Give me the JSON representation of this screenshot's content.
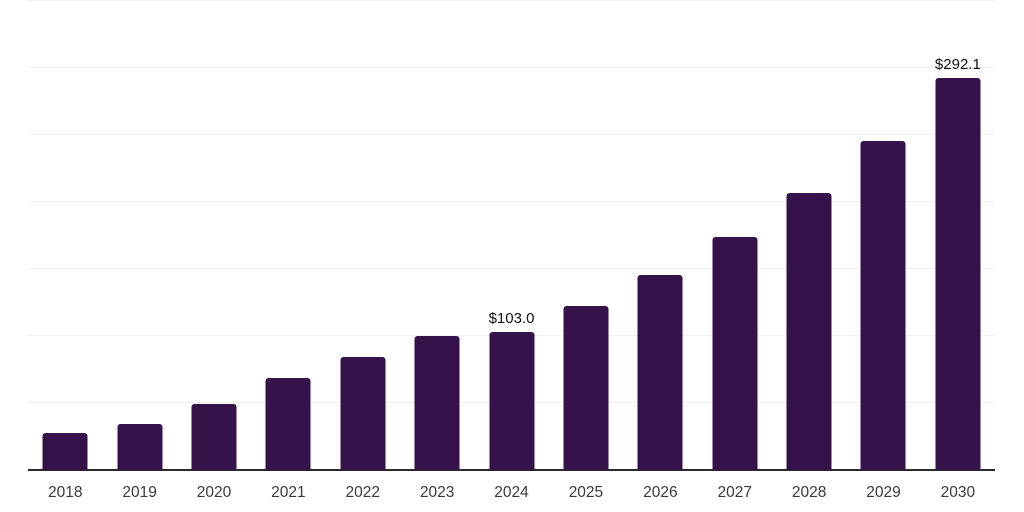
{
  "chart_data": {
    "type": "bar",
    "title": "",
    "xlabel": "",
    "ylabel": "",
    "categories": [
      "2018",
      "2019",
      "2020",
      "2021",
      "2022",
      "2023",
      "2024",
      "2025",
      "2026",
      "2027",
      "2028",
      "2029",
      "2030"
    ],
    "values": [
      27.9,
      34.2,
      49.3,
      68.4,
      84.5,
      100.0,
      103.0,
      122.5,
      145.8,
      173.5,
      206.4,
      245.5,
      292.1
    ],
    "data_labels": {
      "2024": "$103.0",
      "2030": "$292.1"
    },
    "ylim": [
      0,
      350
    ],
    "grid_step": 50,
    "grid": true,
    "legend": "none",
    "colors": {
      "bar": "#351249",
      "gridline": "#efefef",
      "axis_line": "#2a2a2a",
      "tick_label": "#3a3a3a",
      "value_label": "#111111",
      "background": "#ffffff"
    }
  }
}
